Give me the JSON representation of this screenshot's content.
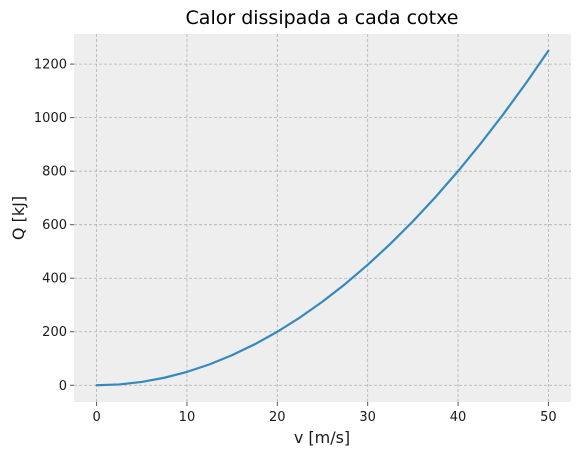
{
  "chart_data": {
    "type": "line",
    "title": "Calor dissipada a cada cotxe",
    "xlabel": "v [m/s]",
    "ylabel": "Q [kJ]",
    "xlim": [
      -2.5,
      52.5
    ],
    "ylim": [
      -62.5,
      1312.5
    ],
    "x_ticks": [
      0,
      10,
      20,
      30,
      40,
      50
    ],
    "y_ticks": [
      0,
      200,
      400,
      600,
      800,
      1000,
      1200
    ],
    "grid": true,
    "legend": "none",
    "colors": {
      "line": "#348abd",
      "plot_background": "#eeeeee",
      "grid": "#b2b2b2",
      "tick": "#555555"
    },
    "series": [
      {
        "x": [
          0,
          2.5,
          5,
          7.5,
          10,
          12.5,
          15,
          17.5,
          20,
          22.5,
          25,
          27.5,
          30,
          32.5,
          35,
          37.5,
          40,
          42.5,
          45,
          47.5,
          50
        ],
        "values": [
          0,
          3.125,
          12.5,
          28.125,
          50,
          78.125,
          112.5,
          153.125,
          200,
          253.125,
          312.5,
          378.125,
          450,
          528.125,
          612.5,
          703.125,
          800,
          903.125,
          1012.5,
          1128.125,
          1250
        ]
      }
    ]
  }
}
